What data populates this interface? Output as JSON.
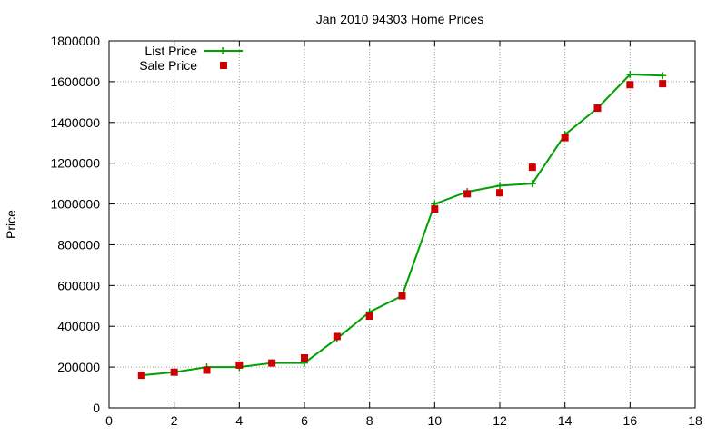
{
  "chart_data": {
    "type": "line",
    "title": "Jan 2010 94303 Home Prices",
    "xlabel": "",
    "ylabel": "Price",
    "xlim": [
      0,
      18
    ],
    "ylim": [
      0,
      1800000
    ],
    "xticks": [
      0,
      2,
      4,
      6,
      8,
      10,
      12,
      14,
      16,
      18
    ],
    "yticks": [
      0,
      200000,
      400000,
      600000,
      800000,
      1000000,
      1200000,
      1400000,
      1600000,
      1800000
    ],
    "grid": true,
    "legend_position": "top-left",
    "series": [
      {
        "name": "List Price",
        "style": "line-plus",
        "color": "#00a000",
        "x": [
          1,
          2,
          3,
          4,
          5,
          6,
          7,
          8,
          9,
          10,
          11,
          12,
          13,
          14,
          15,
          16,
          17
        ],
        "y": [
          160000,
          175000,
          200000,
          200000,
          220000,
          220000,
          340000,
          470000,
          550000,
          1000000,
          1060000,
          1090000,
          1100000,
          1340000,
          1470000,
          1635000,
          1630000
        ]
      },
      {
        "name": "Sale Price",
        "style": "square-points",
        "color": "#cc0000",
        "x": [
          1,
          2,
          3,
          4,
          5,
          6,
          7,
          8,
          9,
          10,
          11,
          12,
          13,
          14,
          15,
          16,
          17
        ],
        "y": [
          160000,
          175000,
          185000,
          210000,
          220000,
          245000,
          350000,
          450000,
          550000,
          975000,
          1050000,
          1055000,
          1180000,
          1325000,
          1470000,
          1585000,
          1590000
        ]
      }
    ]
  }
}
